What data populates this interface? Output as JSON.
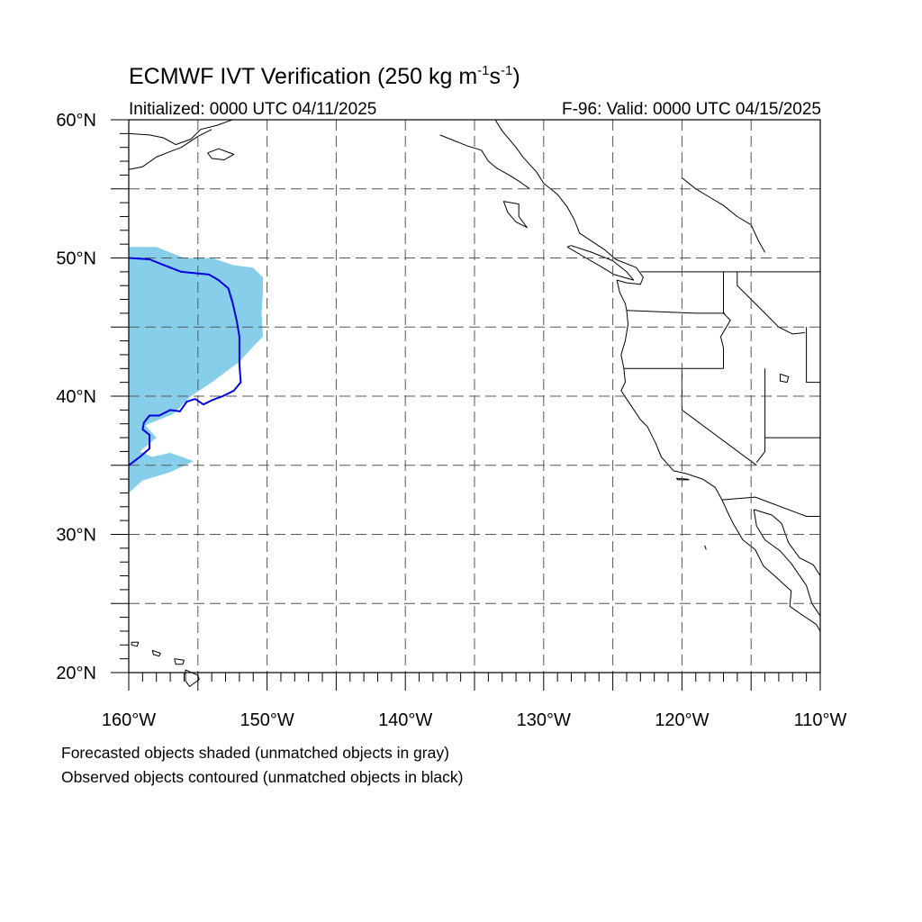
{
  "header": {
    "title_main": "ECMWF IVT Verification (250 kg m",
    "title_exp1": "-1",
    "title_mid": "s",
    "title_exp2": "-1",
    "title_end": ")",
    "initialized": "Initialized: 0000 UTC 04/11/2025",
    "valid": "F-96: Valid: 0000 UTC 04/15/2025"
  },
  "axes": {
    "lat_labels": [
      {
        "value": 60,
        "label": "60°N"
      },
      {
        "value": 50,
        "label": "50°N"
      },
      {
        "value": 40,
        "label": "40°N"
      },
      {
        "value": 30,
        "label": "30°N"
      },
      {
        "value": 20,
        "label": "20°N"
      }
    ],
    "lon_labels": [
      {
        "value": -160,
        "label": "160°W"
      },
      {
        "value": -150,
        "label": "150°W"
      },
      {
        "value": -140,
        "label": "140°W"
      },
      {
        "value": -130,
        "label": "130°W"
      },
      {
        "value": -120,
        "label": "120°W"
      },
      {
        "value": -110,
        "label": "110°W"
      }
    ],
    "lon_range": [
      -160,
      -110
    ],
    "lat_range": [
      20,
      60
    ],
    "grid_interval_deg": 5,
    "grid_style": "dashed"
  },
  "legend": {
    "line1": "Forecasted objects shaded (unmatched objects in gray)",
    "line2": "Observed objects contoured (unmatched objects in black)"
  },
  "colors": {
    "forecast_fill": "#87ceeb",
    "observed_contour": "#0000dd",
    "coastline": "#000000",
    "grid": "#555555"
  },
  "objects": {
    "forecast_object": {
      "outline": [
        [
          -160,
          50.8
        ],
        [
          -158,
          50.8
        ],
        [
          -156,
          50.0
        ],
        [
          -154,
          50.0
        ],
        [
          -152.5,
          49.5
        ],
        [
          -151,
          49.3
        ],
        [
          -150.3,
          48.6
        ],
        [
          -150.3,
          47.5
        ],
        [
          -150.4,
          46.0
        ],
        [
          -150.3,
          44.3
        ],
        [
          -150.9,
          43.7
        ],
        [
          -152,
          42.5
        ],
        [
          -154,
          41.0
        ],
        [
          -155.5,
          40.0
        ],
        [
          -156.8,
          38.7
        ],
        [
          -158.8,
          37.9
        ],
        [
          -158,
          37.0
        ],
        [
          -159.2,
          36.0
        ],
        [
          -158.3,
          35.6
        ],
        [
          -157,
          35.9
        ],
        [
          -155.3,
          35.3
        ],
        [
          -157,
          34.5
        ],
        [
          -159,
          33.9
        ],
        [
          -160,
          33.0
        ]
      ]
    },
    "observed_object": {
      "contour": [
        [
          -160,
          50.0
        ],
        [
          -158.5,
          49.9
        ],
        [
          -157.5,
          49.5
        ],
        [
          -156.2,
          49.0
        ],
        [
          -154.2,
          48.8
        ],
        [
          -153.5,
          48.4
        ],
        [
          -152.8,
          47.8
        ],
        [
          -152.5,
          46.8
        ],
        [
          -152.2,
          45.5
        ],
        [
          -152,
          44.3
        ],
        [
          -152,
          42.3
        ],
        [
          -151.9,
          41.0
        ],
        [
          -152.4,
          40.4
        ],
        [
          -153.2,
          40.0
        ],
        [
          -154,
          39.7
        ],
        [
          -154.6,
          39.4
        ],
        [
          -155.2,
          39.8
        ],
        [
          -155.8,
          39.6
        ],
        [
          -156.3,
          38.9
        ],
        [
          -157,
          39.0
        ],
        [
          -157.8,
          38.6
        ],
        [
          -158.5,
          38.6
        ],
        [
          -158.9,
          38.1
        ],
        [
          -159,
          37.6
        ],
        [
          -158.5,
          37.2
        ],
        [
          -158.5,
          36.2
        ],
        [
          -159.2,
          35.6
        ],
        [
          -160,
          35.0
        ]
      ]
    }
  },
  "geography": {
    "coastline": [
      [
        -133.5,
        60.0
      ],
      [
        -133,
        59.2
      ],
      [
        -132,
        58.0
      ],
      [
        -131.5,
        57.3
      ],
      [
        -130.5,
        56.2
      ],
      [
        -130.0,
        55.4
      ],
      [
        -129.0,
        54.6
      ],
      [
        -128.3,
        53.7
      ],
      [
        -127.8,
        52.8
      ],
      [
        -127.4,
        51.8
      ],
      [
        -125.6,
        50.6
      ],
      [
        -124.8,
        49.9
      ],
      [
        -123.3,
        49.3
      ],
      [
        -122.8,
        48.6
      ],
      [
        -123.0,
        48.1
      ],
      [
        -124.0,
        48.2
      ],
      [
        -124.7,
        48.4
      ],
      [
        -124.5,
        47.5
      ],
      [
        -124.1,
        46.7
      ],
      [
        -124.0,
        46.2
      ],
      [
        -123.9,
        45.2
      ],
      [
        -124.1,
        44.0
      ],
      [
        -124.4,
        43.0
      ],
      [
        -124.2,
        42.0
      ],
      [
        -124.1,
        41.0
      ],
      [
        -124.4,
        40.4
      ],
      [
        -123.8,
        39.5
      ],
      [
        -123.0,
        38.3
      ],
      [
        -122.5,
        37.8
      ],
      [
        -121.9,
        36.6
      ],
      [
        -121.5,
        35.6
      ],
      [
        -120.6,
        34.6
      ],
      [
        -119.7,
        34.4
      ],
      [
        -118.5,
        34.0
      ],
      [
        -117.6,
        33.4
      ],
      [
        -117.1,
        32.5
      ],
      [
        -116.7,
        31.6
      ],
      [
        -116.3,
        30.8
      ],
      [
        -115.6,
        29.6
      ],
      [
        -114.7,
        28.9
      ],
      [
        -114.1,
        27.7
      ],
      [
        -113.3,
        27.0
      ],
      [
        -112.1,
        25.9
      ],
      [
        -112.2,
        24.8
      ],
      [
        -111.5,
        24.3
      ],
      [
        -110.3,
        23.5
      ],
      [
        -110.0,
        23.0
      ]
    ],
    "baja_gulf": [
      [
        -114.8,
        31.8
      ],
      [
        -114.6,
        30.6
      ],
      [
        -114.0,
        29.6
      ],
      [
        -112.9,
        28.8
      ],
      [
        -112.1,
        27.9
      ],
      [
        -111.0,
        26.3
      ],
      [
        -110.6,
        25.0
      ],
      [
        -110.0,
        24.1
      ]
    ],
    "mainland_gulf": [
      [
        -114.8,
        31.8
      ],
      [
        -113.5,
        31.4
      ],
      [
        -112.8,
        30.8
      ],
      [
        -112.3,
        29.4
      ],
      [
        -111.5,
        28.3
      ],
      [
        -110.5,
        27.8
      ],
      [
        -110.0,
        27.0
      ]
    ],
    "us_canada_border": [
      [
        -123.0,
        49.0
      ],
      [
        -110.0,
        49.0
      ]
    ],
    "ca_or_border": [
      [
        -124.2,
        42.0
      ],
      [
        -117.0,
        42.0
      ]
    ],
    "or_wa_border": [
      [
        -124.0,
        46.2
      ],
      [
        -119.0,
        46.0
      ],
      [
        -116.9,
        46.0
      ]
    ],
    "id_west": [
      [
        -117.0,
        49.0
      ],
      [
        -117.0,
        46.0
      ],
      [
        -116.5,
        45.5
      ],
      [
        -117.2,
        44.3
      ],
      [
        -117.0,
        43.5
      ],
      [
        -117.0,
        42.0
      ]
    ],
    "id_east": [
      [
        -116.0,
        49.0
      ],
      [
        -116.0,
        48.0
      ],
      [
        -115.0,
        47.0
      ],
      [
        -114.0,
        46.0
      ],
      [
        -113.0,
        45.0
      ],
      [
        -112.0,
        44.5
      ],
      [
        -111.1,
        44.6
      ]
    ],
    "ca_nv_border": [
      [
        -120.0,
        42.0
      ],
      [
        -120.0,
        39.0
      ],
      [
        -114.6,
        35.0
      ]
    ],
    "nv_east": [
      [
        -114.0,
        42.0
      ],
      [
        -114.0,
        36.0
      ],
      [
        -114.6,
        35.2
      ]
    ],
    "ut_az": [
      [
        -114.0,
        37.0
      ],
      [
        -110.0,
        37.0
      ]
    ],
    "wy": [
      [
        -111.0,
        45.0
      ],
      [
        -111.0,
        41.0
      ],
      [
        -110.0,
        41.0
      ]
    ],
    "mex_border": [
      [
        -117.1,
        32.5
      ],
      [
        -114.7,
        32.7
      ],
      [
        -111.0,
        31.3
      ],
      [
        -110.0,
        31.3
      ]
    ],
    "canada_inland": [
      [
        -120,
        55.8
      ],
      [
        -119,
        55.0
      ],
      [
        -118,
        54.4
      ],
      [
        -117,
        53.8
      ],
      [
        -116,
        53.0
      ],
      [
        -115,
        52.4
      ],
      [
        -114.5,
        51.3
      ],
      [
        -114,
        50.4
      ]
    ],
    "alaska_south": [
      [
        -160,
        59.0
      ],
      [
        -158.5,
        58.9
      ],
      [
        -157.5,
        58.7
      ],
      [
        -156.6,
        58.2
      ],
      [
        -155.5,
        58.6
      ],
      [
        -154.8,
        59.3
      ],
      [
        -153.6,
        59.6
      ],
      [
        -152.5,
        60.0
      ]
    ],
    "alaska_pen": [
      [
        -160,
        56.4
      ],
      [
        -159,
        56.6
      ],
      [
        -158,
        57.3
      ],
      [
        -157,
        57.7
      ],
      [
        -156.2,
        58.0
      ],
      [
        -155,
        58.8
      ],
      [
        -154,
        59.3
      ]
    ],
    "kodiak": [
      [
        -154.3,
        57.6
      ],
      [
        -153.5,
        57.9
      ],
      [
        -152.4,
        57.5
      ],
      [
        -153.1,
        57.1
      ],
      [
        -154.0,
        57.2
      ],
      [
        -154.3,
        57.6
      ]
    ],
    "se_alaska_inner": [
      [
        -137.5,
        58.9
      ],
      [
        -136.5,
        58.5
      ],
      [
        -135.5,
        58.1
      ],
      [
        -134.5,
        57.8
      ],
      [
        -134,
        57.0
      ],
      [
        -133.4,
        56.5
      ],
      [
        -132.5,
        56.0
      ],
      [
        -131.7,
        55.5
      ],
      [
        -131,
        55.0
      ]
    ],
    "haida_gwaii": [
      [
        -132.9,
        54.1
      ],
      [
        -131.8,
        53.9
      ],
      [
        -131.8,
        53.0
      ],
      [
        -131.2,
        52.2
      ],
      [
        -132.0,
        52.6
      ],
      [
        -132.6,
        53.3
      ],
      [
        -132.9,
        54.1
      ]
    ],
    "vancouver_island": [
      [
        -128.3,
        50.8
      ],
      [
        -127.1,
        50.1
      ],
      [
        -125.9,
        49.4
      ],
      [
        -124.9,
        48.8
      ],
      [
        -123.5,
        48.4
      ],
      [
        -124.0,
        49.0
      ],
      [
        -125.0,
        49.8
      ],
      [
        -126.5,
        50.4
      ],
      [
        -128.0,
        50.9
      ],
      [
        -128.3,
        50.8
      ]
    ],
    "hawaii_big": [
      [
        -155.9,
        20.2
      ],
      [
        -155.0,
        19.8
      ],
      [
        -154.9,
        19.5
      ],
      [
        -155.6,
        19.0
      ],
      [
        -155.9,
        19.4
      ],
      [
        -155.9,
        20.2
      ]
    ],
    "maui": [
      [
        -156.7,
        21.0
      ],
      [
        -156.0,
        20.9
      ],
      [
        -156.1,
        20.6
      ],
      [
        -156.6,
        20.6
      ],
      [
        -156.7,
        21.0
      ]
    ],
    "oahu": [
      [
        -158.3,
        21.6
      ],
      [
        -157.7,
        21.4
      ],
      [
        -157.8,
        21.2
      ],
      [
        -158.2,
        21.3
      ],
      [
        -158.3,
        21.6
      ]
    ],
    "kauai": [
      [
        -159.8,
        22.2
      ],
      [
        -159.3,
        22.2
      ],
      [
        -159.4,
        21.9
      ],
      [
        -159.8,
        22.0
      ],
      [
        -159.8,
        22.2
      ]
    ],
    "channel_isl": [
      [
        -120.4,
        34.05
      ],
      [
        -119.6,
        34.0
      ],
      [
        -119.5,
        33.95
      ],
      [
        -120.3,
        33.95
      ],
      [
        -120.4,
        34.05
      ]
    ],
    "lake_saltlake": [
      [
        -112.9,
        41.6
      ],
      [
        -112.3,
        41.4
      ],
      [
        -112.4,
        41.0
      ],
      [
        -112.9,
        41.1
      ],
      [
        -112.9,
        41.6
      ]
    ],
    "guadalupe": [
      [
        -118.35,
        29.2
      ],
      [
        -118.25,
        28.9
      ]
    ]
  }
}
